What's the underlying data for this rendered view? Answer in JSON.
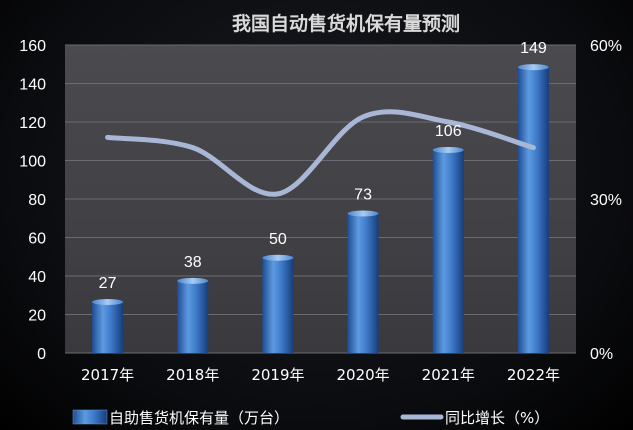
{
  "chart_data": {
    "type": "bar",
    "title": "我国自动售货机保有量预测",
    "categories": [
      "2017年",
      "2018年",
      "2019年",
      "2020年",
      "2021年",
      "2022年"
    ],
    "series": [
      {
        "name": "自助售货机保有量（万台）",
        "type": "bar",
        "axis": "left",
        "values": [
          27,
          38,
          50,
          73,
          106,
          149
        ],
        "color": "#3c78c8"
      },
      {
        "name": "同比增长（%）",
        "type": "line",
        "axis": "right",
        "values": [
          42,
          40,
          31,
          46,
          45,
          40
        ],
        "color": "#a9b7d6"
      }
    ],
    "y_left": {
      "min": 0,
      "max": 160,
      "step": 20,
      "ticks": [
        "0",
        "20",
        "40",
        "60",
        "80",
        "100",
        "120",
        "140",
        "160"
      ]
    },
    "y_right": {
      "min": 0,
      "max": 60,
      "ticks": [
        "0%",
        "30%",
        "60%"
      ]
    },
    "grid": true,
    "legend_position": "bottom"
  }
}
